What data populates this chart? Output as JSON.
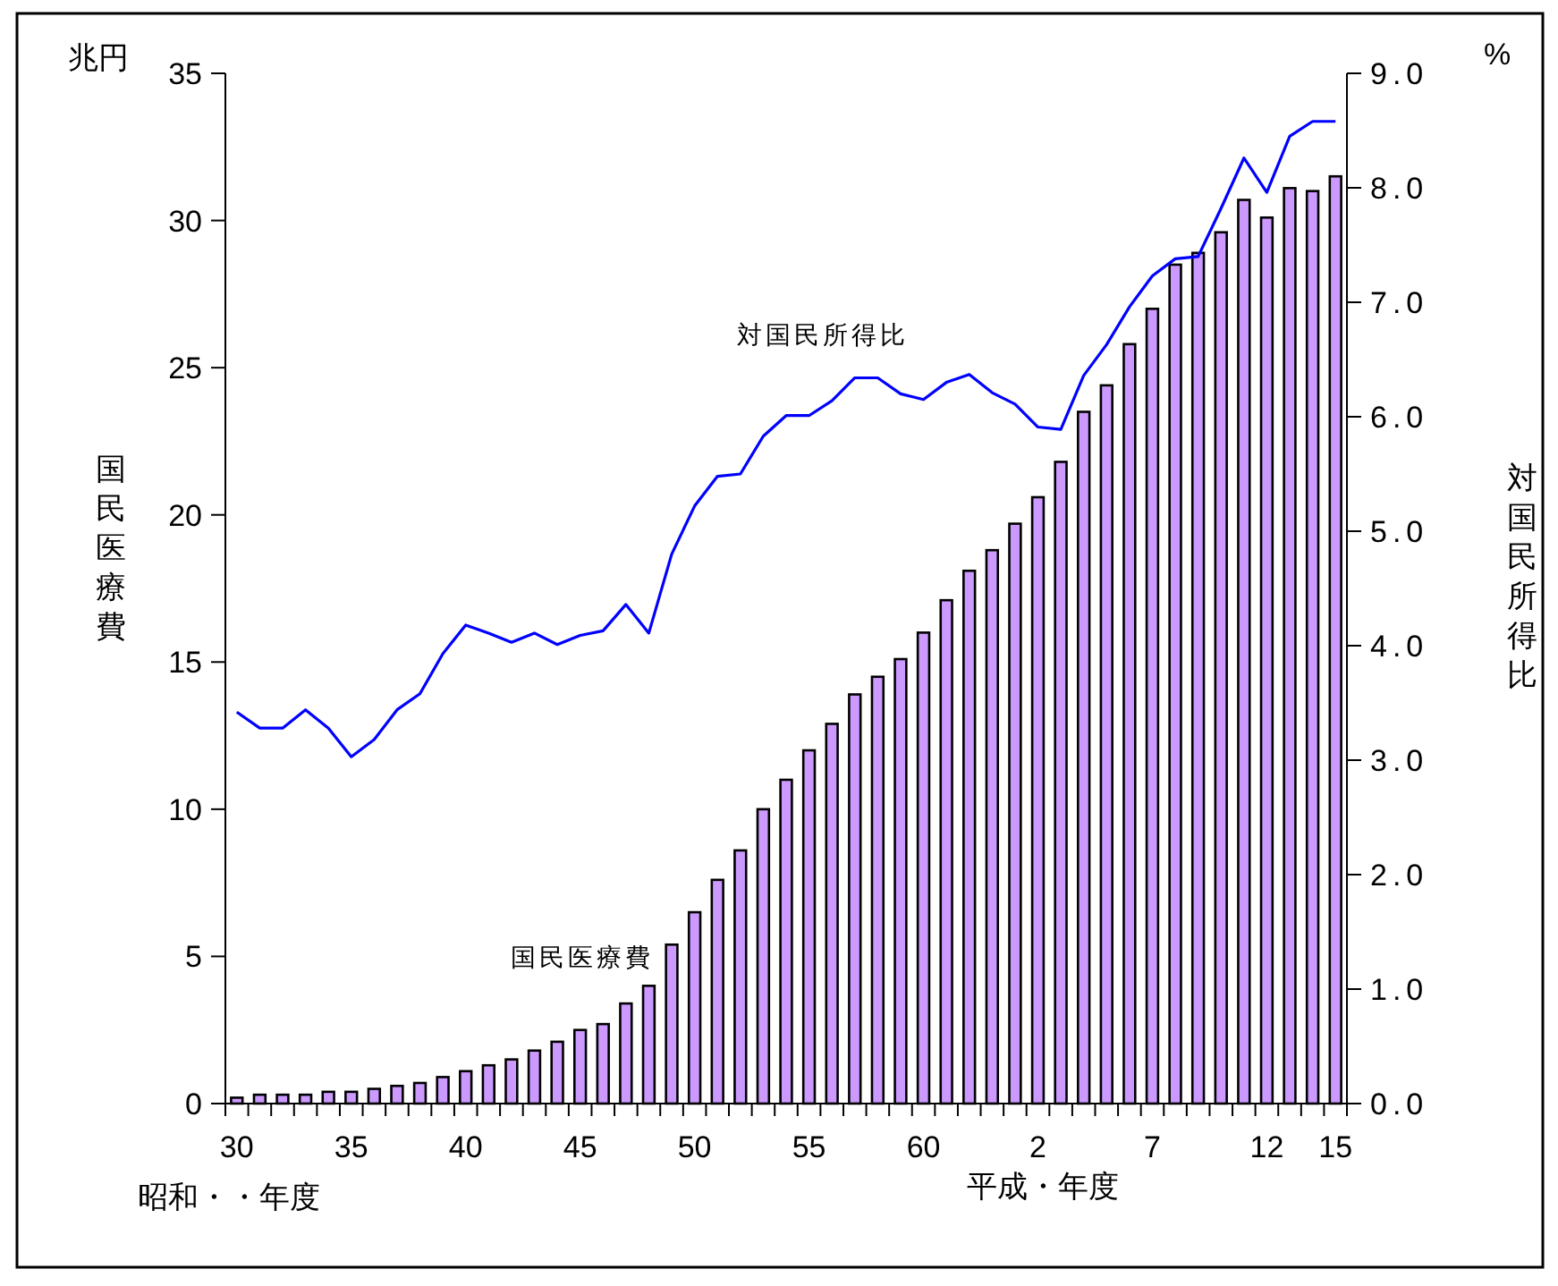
{
  "chart_data": {
    "type": "bar",
    "ylabel": "国民医療費",
    "y2label": "対国民所得比",
    "categories": [
      "30",
      null,
      null,
      null,
      null,
      "35",
      null,
      null,
      null,
      null,
      "40",
      null,
      null,
      null,
      null,
      "45",
      null,
      null,
      null,
      null,
      "50",
      null,
      null,
      null,
      null,
      "55",
      null,
      null,
      null,
      null,
      "60",
      null,
      null,
      null,
      null,
      "2",
      null,
      null,
      null,
      null,
      "7",
      null,
      null,
      null,
      null,
      "12",
      null,
      null,
      "15"
    ],
    "series": [
      {
        "name": "国民医療費",
        "color": "#cc99ff",
        "values": [
          0.2,
          0.3,
          0.3,
          0.3,
          0.4,
          0.4,
          0.5,
          0.6,
          0.7,
          0.9,
          1.1,
          1.3,
          1.5,
          1.8,
          2.1,
          2.5,
          2.7,
          3.4,
          4.0,
          5.4,
          6.5,
          7.6,
          8.6,
          10.0,
          11.0,
          12.0,
          12.9,
          13.9,
          14.5,
          15.1,
          16.0,
          17.1,
          18.1,
          18.8,
          19.7,
          20.6,
          21.8,
          23.5,
          24.4,
          25.8,
          27.0,
          28.5,
          28.9,
          29.6,
          30.7,
          30.1,
          31.1,
          31.0,
          31.5
        ]
      },
      {
        "name": "対国民所得比",
        "type": "line",
        "axis": "y2",
        "color": "#0000ff",
        "values": [
          3.42,
          3.28,
          3.28,
          3.44,
          3.28,
          3.03,
          3.18,
          3.44,
          3.58,
          3.93,
          4.18,
          4.11,
          4.03,
          4.11,
          4.01,
          4.09,
          4.13,
          4.36,
          4.11,
          4.8,
          5.22,
          5.48,
          5.5,
          5.83,
          6.01,
          6.01,
          6.14,
          6.34,
          6.34,
          6.2,
          6.15,
          6.3,
          6.37,
          6.21,
          6.11,
          5.91,
          5.89,
          6.36,
          6.63,
          6.96,
          7.23,
          7.38,
          7.4,
          7.82,
          8.26,
          7.96,
          8.45,
          8.58,
          8.58
        ]
      }
    ],
    "ylim": [
      0,
      35
    ],
    "yticks": [
      0,
      5,
      10,
      15,
      20,
      25,
      30,
      35
    ],
    "y2lim": [
      0,
      9
    ],
    "y2ticks": [
      {
        "value": 0,
        "label": "0.0"
      },
      {
        "value": 1,
        "label": "1.0"
      },
      {
        "value": 2,
        "label": "2.0"
      },
      {
        "value": 3,
        "label": "3.0"
      },
      {
        "value": 4,
        "label": "4.0"
      },
      {
        "value": 5,
        "label": "5.0"
      },
      {
        "value": 6,
        "label": "6.0"
      },
      {
        "value": 7,
        "label": "7.0"
      },
      {
        "value": 8,
        "label": "8.0"
      },
      {
        "value": 9,
        "label": "9.0"
      }
    ],
    "annotations": [
      "兆円",
      "%",
      "昭和・・年度",
      "平成・年度"
    ],
    "legend": false,
    "grid": false,
    "marker": "none",
    "line_style": "solid"
  }
}
